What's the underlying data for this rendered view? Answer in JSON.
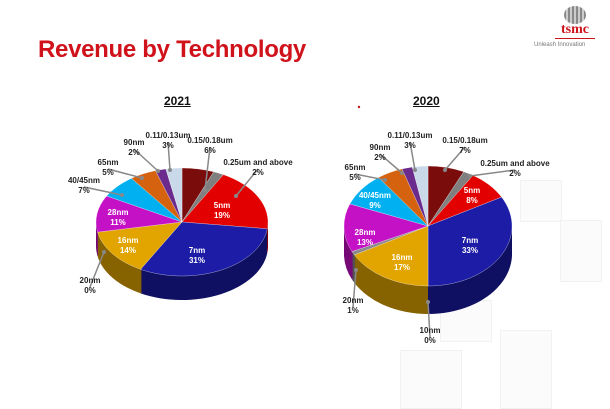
{
  "slide": {
    "title": "Revenue by Technology",
    "logo_text": "tsmc",
    "tagline": "Unleash Innovation"
  },
  "colors": {
    "title": "#d0121b"
  },
  "chart_data": [
    {
      "type": "pie",
      "title": "2021",
      "categories": [
        "0.15/0.18um",
        "0.25um and above",
        "5nm",
        "7nm",
        "16nm",
        "20nm",
        "28nm",
        "40/45nm",
        "65nm",
        "90nm",
        "0.11/0.13um"
      ],
      "values": [
        6,
        2,
        19,
        31,
        14,
        0,
        11,
        7,
        5,
        2,
        3
      ],
      "labels": [
        "6%",
        "2%",
        "19%",
        "31%",
        "14%",
        "0%",
        "11%",
        "7%",
        "5%",
        "2%",
        "3%"
      ],
      "colors": [
        "#7a0c0c",
        "#7f7f7f",
        "#e30000",
        "#1c1ca6",
        "#e2a500",
        "#8a8a8a",
        "#c511c5",
        "#00b0f0",
        "#d4620f",
        "#6b2b8c",
        "#c9d9ea"
      ]
    },
    {
      "type": "pie",
      "title": "2020",
      "categories": [
        "0.15/0.18um",
        "0.25um and above",
        "5nm",
        "7nm",
        "10nm",
        "16nm",
        "20nm",
        "28nm",
        "40/45nm",
        "65nm",
        "90nm",
        "0.11/0.13um"
      ],
      "values": [
        7,
        2,
        8,
        33,
        0,
        17,
        1,
        13,
        9,
        5,
        2,
        3
      ],
      "labels": [
        "7%",
        "2%",
        "8%",
        "33%",
        "0%",
        "17%",
        "1%",
        "13%",
        "9%",
        "5%",
        "2%",
        "3%"
      ],
      "colors": [
        "#7a0c0c",
        "#7f7f7f",
        "#e30000",
        "#1c1ca6",
        "#555555",
        "#e2a500",
        "#8a8a8a",
        "#c511c5",
        "#00b0f0",
        "#d4620f",
        "#6b2b8c",
        "#c9d9ea"
      ]
    }
  ]
}
